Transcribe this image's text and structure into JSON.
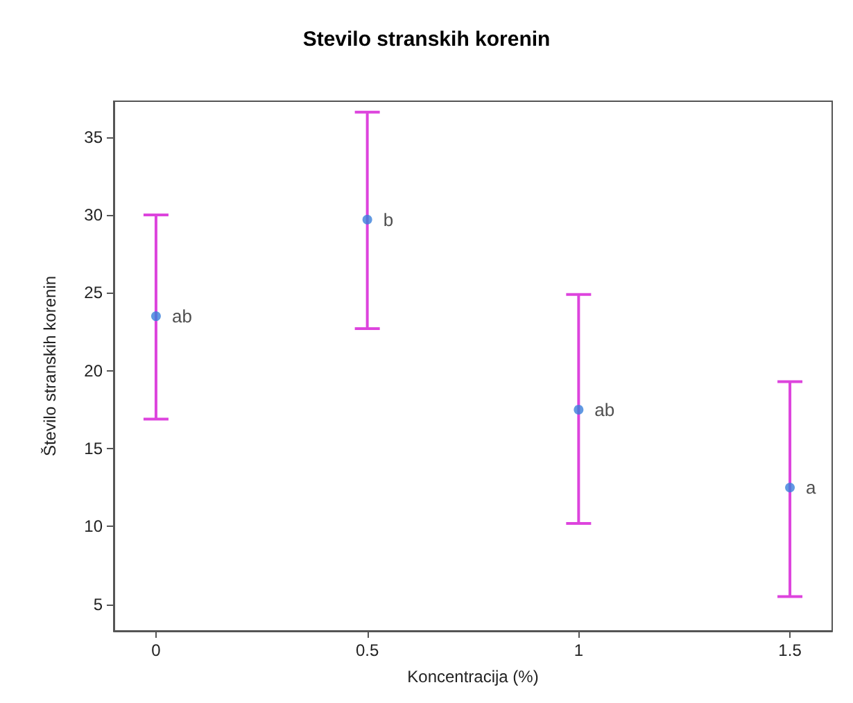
{
  "chart_data": {
    "type": "scatter",
    "title": "Stevilo stranskih korenin",
    "xlabel": "Koncentracija (%)",
    "ylabel": "Število stranskih korenin",
    "x": [
      0,
      0.5,
      1,
      1.5
    ],
    "series": [
      {
        "color": "#3a7fdb",
        "values": [
          23.5,
          29.7,
          17.5,
          12.5
        ],
        "errors": [
          [
            16.9,
            30.0
          ],
          [
            22.7,
            36.6
          ],
          [
            10.2,
            24.9
          ],
          [
            5.5,
            19.3
          ]
        ],
        "value_labels": [
          "ab",
          "b",
          "ab",
          "a"
        ]
      }
    ],
    "xlim": [
      -0.1,
      1.6
    ],
    "xticks": [
      0,
      0.5,
      1,
      1.5
    ],
    "ylim": [
      3.3,
      37.3
    ],
    "yticks": [
      5,
      10,
      15,
      20,
      25,
      30,
      35
    ],
    "grid": false,
    "marker": "circle"
  }
}
